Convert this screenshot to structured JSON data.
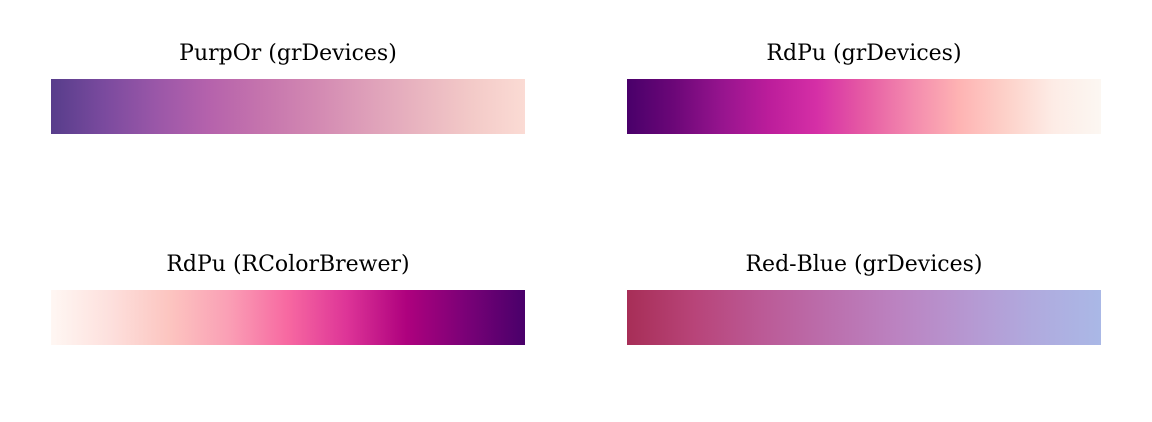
{
  "palettes": [
    {
      "title": "PurpOr (grDevices)",
      "colors": [
        "#573d8b",
        "#7a4a9e",
        "#9a57a8",
        "#b562ac",
        "#c574ad",
        "#d288b2",
        "#de9fb9",
        "#e9b5c0",
        "#f3cac8",
        "#fbdbd4"
      ]
    },
    {
      "title": "RdPu (grDevices)",
      "colors": [
        "#49006a",
        "#6c0778",
        "#96148e",
        "#bc1d9b",
        "#d52fa6",
        "#e65ba4",
        "#f389ae",
        "#feb3b3",
        "#fdd1c9",
        "#fdece6",
        "#fcf7f2"
      ]
    },
    {
      "title": "RdPu (RColorBrewer)",
      "colors": [
        "#fff7f3",
        "#fde0dd",
        "#fcc5c0",
        "#fa9fb5",
        "#f768a1",
        "#dd3497",
        "#ae017e",
        "#7a0177",
        "#49006a"
      ]
    },
    {
      "title": "Red-Blue (grDevices)",
      "colors": [
        "#a72e57",
        "#b84479",
        "#bb5a96",
        "#bb6fad",
        "#bb83c1",
        "#b697d1",
        "#b0aade",
        "#aab8e6"
      ]
    }
  ]
}
